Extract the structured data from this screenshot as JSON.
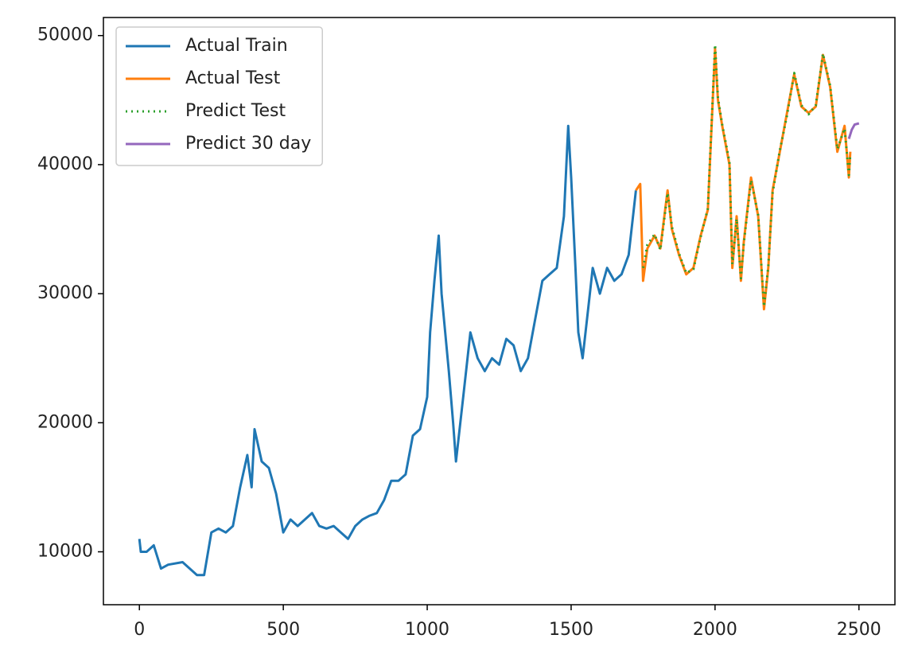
{
  "chart_data": {
    "type": "line",
    "xlim": [
      -125,
      2625
    ],
    "xticks": [
      0,
      500,
      1000,
      1500,
      2000,
      2500
    ],
    "ylim": [
      5900,
      51400
    ],
    "yticks": [
      10000,
      20000,
      30000,
      40000,
      50000
    ],
    "grid": false,
    "legend": "upper left",
    "series": [
      {
        "name": "Actual Train",
        "color": "#1f77b4",
        "linestyle": "solid",
        "x": [
          0,
          5,
          25,
          50,
          75,
          100,
          150,
          200,
          225,
          250,
          275,
          300,
          325,
          350,
          375,
          390,
          400,
          425,
          450,
          475,
          500,
          525,
          550,
          575,
          600,
          625,
          650,
          675,
          700,
          725,
          750,
          775,
          800,
          825,
          850,
          875,
          900,
          925,
          950,
          975,
          1000,
          1010,
          1025,
          1040,
          1050,
          1075,
          1090,
          1100,
          1125,
          1150,
          1175,
          1200,
          1225,
          1250,
          1275,
          1300,
          1325,
          1350,
          1375,
          1400,
          1425,
          1450,
          1475,
          1490,
          1500,
          1515,
          1525,
          1540,
          1560,
          1575,
          1600,
          1625,
          1650,
          1675,
          1700,
          1725
        ],
        "values": [
          11000,
          10000,
          10000,
          10500,
          8700,
          9000,
          9200,
          8200,
          8200,
          11500,
          11800,
          11500,
          12000,
          15000,
          17500,
          15000,
          19500,
          17000,
          16500,
          14500,
          11500,
          12500,
          12000,
          12500,
          13000,
          12000,
          11800,
          12000,
          11500,
          11000,
          12000,
          12500,
          12800,
          13000,
          14000,
          15500,
          15500,
          16000,
          19000,
          19500,
          22000,
          27000,
          31000,
          34500,
          30000,
          24000,
          20000,
          17000,
          22000,
          27000,
          25000,
          24000,
          25000,
          24500,
          26500,
          26000,
          24000,
          25000,
          28000,
          31000,
          31500,
          32000,
          36000,
          43000,
          39000,
          32000,
          27000,
          25000,
          29000,
          32000,
          30000,
          32000,
          31000,
          31500,
          33000,
          38000
        ]
      },
      {
        "name": "Actual Test",
        "color": "#ff7f0e",
        "linestyle": "solid",
        "x": [
          1725,
          1740,
          1750,
          1765,
          1790,
          1810,
          1835,
          1850,
          1875,
          1900,
          1925,
          1950,
          1975,
          2000,
          2010,
          2025,
          2050,
          2060,
          2075,
          2090,
          2100,
          2125,
          2150,
          2170,
          2185,
          2200,
          2225,
          2250,
          2275,
          2300,
          2325,
          2350,
          2375,
          2400,
          2425,
          2450,
          2465,
          2470
        ],
        "values": [
          38000,
          38500,
          31000,
          33500,
          34500,
          33500,
          38000,
          35000,
          33000,
          31500,
          32000,
          34500,
          36500,
          49000,
          45000,
          43000,
          40000,
          32000,
          36000,
          31000,
          34000,
          39000,
          36000,
          28800,
          32000,
          38000,
          41000,
          44000,
          47000,
          44500,
          44000,
          44500,
          48500,
          46000,
          41000,
          43000,
          39000,
          41000
        ]
      },
      {
        "name": "Predict Test",
        "color": "#2ca02c",
        "linestyle": "dotted",
        "x": [
          1750,
          1765,
          1790,
          1810,
          1835,
          1850,
          1875,
          1900,
          1925,
          1950,
          1975,
          2000,
          2010,
          2025,
          2050,
          2060,
          2075,
          2090,
          2100,
          2125,
          2150,
          2170,
          2185,
          2200,
          2225,
          2250,
          2275,
          2300,
          2325,
          2350,
          2375,
          2400,
          2425,
          2450,
          2465,
          2470
        ],
        "values": [
          32000,
          33800,
          34600,
          33400,
          37800,
          35200,
          33100,
          31600,
          31900,
          34400,
          36600,
          49300,
          45200,
          43100,
          40200,
          32300,
          35800,
          31200,
          33900,
          38800,
          36100,
          29000,
          32100,
          37800,
          41100,
          43800,
          47100,
          44600,
          43900,
          44600,
          48600,
          46100,
          41200,
          42800,
          39200,
          40800
        ]
      },
      {
        "name": "Predict 30 day",
        "color": "#9467bd",
        "linestyle": "solid",
        "x": [
          2465,
          2475,
          2485,
          2500
        ],
        "values": [
          42000,
          42700,
          43100,
          43200
        ]
      }
    ]
  }
}
